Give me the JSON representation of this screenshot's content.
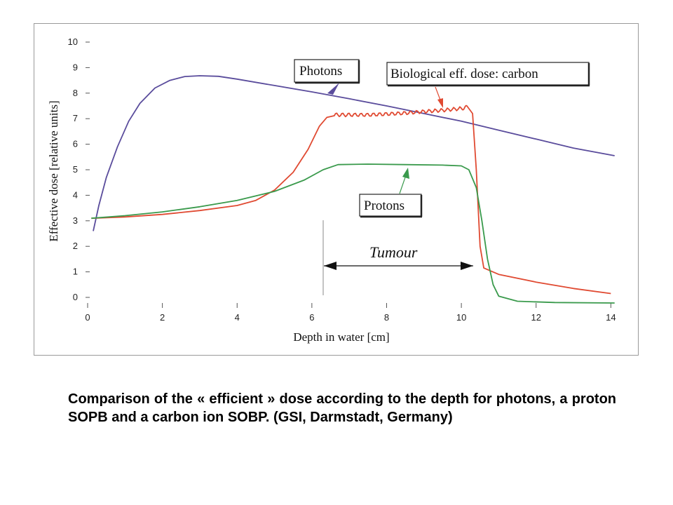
{
  "chart_data": {
    "type": "line",
    "xlabel": "Depth in water [cm]",
    "ylabel": "Effective dose [relative units]",
    "xlim": [
      0,
      14.2
    ],
    "ylim": [
      0,
      10
    ],
    "x_ticks": [
      "0",
      "2",
      "4",
      "6",
      "8",
      "10",
      "12",
      "14"
    ],
    "y_ticks": [
      "0",
      "1",
      "2",
      "3",
      "4",
      "5",
      "6",
      "7",
      "8",
      "9",
      "10"
    ],
    "grid": false,
    "series": [
      {
        "name": "Photons",
        "color": "#5a4c9c",
        "points": [
          [
            0.15,
            2.6
          ],
          [
            0.3,
            3.6
          ],
          [
            0.5,
            4.7
          ],
          [
            0.8,
            5.9
          ],
          [
            1.1,
            6.9
          ],
          [
            1.4,
            7.6
          ],
          [
            1.8,
            8.2
          ],
          [
            2.2,
            8.5
          ],
          [
            2.6,
            8.65
          ],
          [
            3.0,
            8.68
          ],
          [
            3.5,
            8.66
          ],
          [
            4.0,
            8.55
          ],
          [
            5.0,
            8.3
          ],
          [
            6.0,
            8.05
          ],
          [
            7.0,
            7.78
          ],
          [
            8.0,
            7.5
          ],
          [
            9.0,
            7.2
          ],
          [
            10.0,
            6.9
          ],
          [
            11.0,
            6.55
          ],
          [
            12.0,
            6.2
          ],
          [
            13.0,
            5.85
          ],
          [
            14.1,
            5.55
          ]
        ]
      },
      {
        "name": "Biological eff. dose: carbon",
        "color": "#e04a32",
        "points": [
          [
            0.1,
            3.1
          ],
          [
            1.0,
            3.15
          ],
          [
            2.0,
            3.25
          ],
          [
            3.0,
            3.4
          ],
          [
            4.0,
            3.6
          ],
          [
            4.5,
            3.8
          ],
          [
            5.0,
            4.2
          ],
          [
            5.5,
            4.9
          ],
          [
            5.9,
            5.8
          ],
          [
            6.2,
            6.7
          ],
          [
            6.4,
            7.05
          ],
          [
            6.6,
            7.15
          ],
          [
            7.0,
            7.15
          ],
          [
            7.5,
            7.15
          ],
          [
            8.0,
            7.18
          ],
          [
            8.5,
            7.22
          ],
          [
            9.0,
            7.28
          ],
          [
            9.5,
            7.33
          ],
          [
            10.0,
            7.4
          ],
          [
            10.15,
            7.45
          ],
          [
            10.3,
            7.2
          ],
          [
            10.4,
            5.0
          ],
          [
            10.5,
            2.0
          ],
          [
            10.6,
            1.15
          ],
          [
            11.0,
            0.9
          ],
          [
            12.0,
            0.6
          ],
          [
            13.0,
            0.35
          ],
          [
            14.0,
            0.15
          ]
        ]
      },
      {
        "name": "Protons",
        "color": "#3a9a4c",
        "points": [
          [
            0.1,
            3.1
          ],
          [
            1.0,
            3.2
          ],
          [
            2.0,
            3.35
          ],
          [
            3.0,
            3.55
          ],
          [
            4.0,
            3.8
          ],
          [
            5.0,
            4.15
          ],
          [
            5.8,
            4.6
          ],
          [
            6.3,
            5.0
          ],
          [
            6.7,
            5.2
          ],
          [
            7.5,
            5.22
          ],
          [
            8.5,
            5.2
          ],
          [
            9.5,
            5.18
          ],
          [
            10.0,
            5.15
          ],
          [
            10.2,
            5.0
          ],
          [
            10.4,
            4.3
          ],
          [
            10.55,
            3.0
          ],
          [
            10.7,
            1.5
          ],
          [
            10.85,
            0.5
          ],
          [
            11.0,
            0.05
          ],
          [
            11.5,
            -0.15
          ],
          [
            12.5,
            -0.2
          ],
          [
            14.1,
            -0.22
          ]
        ]
      }
    ],
    "annotations": [
      {
        "text": "Photons",
        "points_to": [
          8.5,
          7.9
        ]
      },
      {
        "text": "Biological eff. dose: carbon",
        "points_to": [
          9.6,
          7.3
        ]
      },
      {
        "text": "Protons",
        "points_to": [
          8.8,
          5.1
        ]
      },
      {
        "text": "Tumour",
        "range": [
          6.3,
          10.3
        ],
        "y": 1.2
      }
    ]
  },
  "caption": "Comparison of the « efficient » dose according to the depth for photons, a proton SOPB and a carbon ion SOBP. (GSI, Darmstadt, Germany)"
}
